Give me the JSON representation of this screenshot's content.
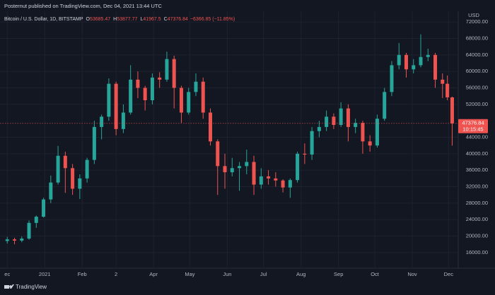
{
  "chart_data": {
    "type": "candlestick",
    "header": "Posternut published on TradingView.com, Dec 04, 2021 13:44 UTC",
    "title": "Bitcoin / U.S. Dollar, 1D, BITSTAMP",
    "legend": [
      {
        "key": "O",
        "value": 53685.47
      },
      {
        "key": "H",
        "value": 53877.77
      },
      {
        "key": "L",
        "value": 41967.5
      },
      {
        "key": "C",
        "value": 47376.84
      }
    ],
    "change_label": "−6366.85 (−11.85%)",
    "y_axis_label": "USD",
    "up_color": "#26a69a",
    "down_color": "#ef5350",
    "grid": true,
    "x": [
      0,
      6,
      12,
      18,
      24,
      30,
      36,
      42,
      48,
      54,
      60,
      66,
      72,
      78,
      84,
      90,
      96,
      102,
      108,
      114,
      120,
      126,
      132,
      138,
      144,
      150,
      156,
      162,
      168,
      174,
      180,
      186,
      192,
      198,
      204,
      210,
      216,
      222,
      228,
      234,
      240,
      246,
      252,
      258,
      264,
      270,
      276,
      282,
      288,
      294,
      300,
      306,
      312,
      318,
      324,
      330,
      336,
      342,
      348,
      354,
      360,
      364,
      368
    ],
    "open": [
      18800,
      19200,
      18900,
      19400,
      23200,
      24700,
      28900,
      33000,
      39500,
      36500,
      31500,
      34000,
      38500,
      46500,
      49000,
      57000,
      46000,
      50000,
      58000,
      56000,
      53000,
      58500,
      58000,
      63000,
      56000,
      50000,
      55000,
      57500,
      50000,
      43000,
      37000,
      35500,
      36500,
      37000,
      38000,
      32500,
      34500,
      34000,
      33500,
      31800,
      33600,
      40000,
      39800,
      45500,
      46500,
      49000,
      47000,
      51000,
      46500,
      47500,
      43000,
      42000,
      48500,
      55000,
      61500,
      64000,
      60500,
      61500,
      63500,
      64000,
      58000,
      57000,
      53685.47
    ],
    "high": [
      19800,
      19600,
      19900,
      23800,
      25000,
      29300,
      34700,
      41900,
      40500,
      37500,
      35000,
      39000,
      48000,
      49500,
      58300,
      57500,
      52000,
      61500,
      60000,
      56500,
      59500,
      59800,
      64800,
      63800,
      56500,
      56000,
      59500,
      58500,
      51000,
      43500,
      40000,
      39000,
      38000,
      41000,
      39500,
      36500,
      36000,
      35500,
      33800,
      34000,
      40500,
      42500,
      46500,
      48000,
      50500,
      49800,
      52500,
      52000,
      48500,
      48000,
      44500,
      49500,
      56000,
      62500,
      66900,
      64500,
      63000,
      69000,
      65500,
      64500,
      59500,
      59000,
      53877.77
    ],
    "low": [
      18200,
      18000,
      18500,
      19100,
      22000,
      24500,
      28000,
      32500,
      30500,
      30000,
      29000,
      33000,
      37500,
      43500,
      48000,
      44500,
      45000,
      49500,
      53500,
      50500,
      52000,
      56000,
      57500,
      51000,
      47500,
      49500,
      54000,
      48500,
      42000,
      30000,
      31500,
      34500,
      31000,
      35000,
      30000,
      31500,
      32500,
      32000,
      30600,
      29300,
      33000,
      37500,
      38500,
      44000,
      45500,
      46000,
      46500,
      43000,
      45000,
      40000,
      40500,
      41500,
      48000,
      54000,
      60500,
      58500,
      59500,
      61000,
      62500,
      56000,
      53500,
      53000,
      41967.5
    ],
    "close": [
      19200,
      18900,
      19400,
      23200,
      24700,
      28900,
      33000,
      39500,
      36500,
      31500,
      34000,
      38500,
      46500,
      49000,
      57000,
      46000,
      50000,
      58000,
      56000,
      53000,
      58500,
      58000,
      63000,
      56000,
      50000,
      55000,
      57500,
      50000,
      43000,
      37000,
      35500,
      36500,
      37000,
      38000,
      32500,
      34500,
      34000,
      33500,
      31800,
      33600,
      40000,
      39800,
      45500,
      46500,
      49000,
      47000,
      51000,
      46500,
      47500,
      43000,
      42000,
      48500,
      55000,
      61500,
      64000,
      60500,
      61500,
      63500,
      64000,
      58000,
      57000,
      53700,
      47376.84
    ],
    "last_price": 47376.84,
    "countdown": "10:15:45",
    "xlim": [
      -6,
      373
    ],
    "xticks": [
      {
        "value": 0,
        "label": "ec"
      },
      {
        "value": 31,
        "label": "2021"
      },
      {
        "value": 62,
        "label": "Feb"
      },
      {
        "value": 90,
        "label": "2"
      },
      {
        "value": 121,
        "label": "Apr"
      },
      {
        "value": 151,
        "label": "May"
      },
      {
        "value": 182,
        "label": "Jun"
      },
      {
        "value": 212,
        "label": "Jul"
      },
      {
        "value": 243,
        "label": "Aug"
      },
      {
        "value": 274,
        "label": "Sep"
      },
      {
        "value": 304,
        "label": "Oct"
      },
      {
        "value": 335,
        "label": "Nov"
      },
      {
        "value": 365,
        "label": "Dec"
      }
    ],
    "ylim": [
      12200,
      74600
    ],
    "yticks": [
      {
        "value": 16000,
        "label": "16000.00"
      },
      {
        "value": 20000,
        "label": "20000.00"
      },
      {
        "value": 24000,
        "label": "24000.00"
      },
      {
        "value": 28000,
        "label": "28000.00"
      },
      {
        "value": 32000,
        "label": "32000.00"
      },
      {
        "value": 36000,
        "label": "36000.00"
      },
      {
        "value": 40000,
        "label": "40000.00"
      },
      {
        "value": 44000,
        "label": "44000.00"
      },
      {
        "value": 52000,
        "label": "52000.00"
      },
      {
        "value": 56000,
        "label": "56000.00"
      },
      {
        "value": 60000,
        "label": "60000.00"
      },
      {
        "value": 64000,
        "label": "64000.00"
      },
      {
        "value": 68000,
        "label": "68000.00"
      },
      {
        "value": 72000,
        "label": "72000.00"
      }
    ],
    "footer": "TradingView"
  }
}
